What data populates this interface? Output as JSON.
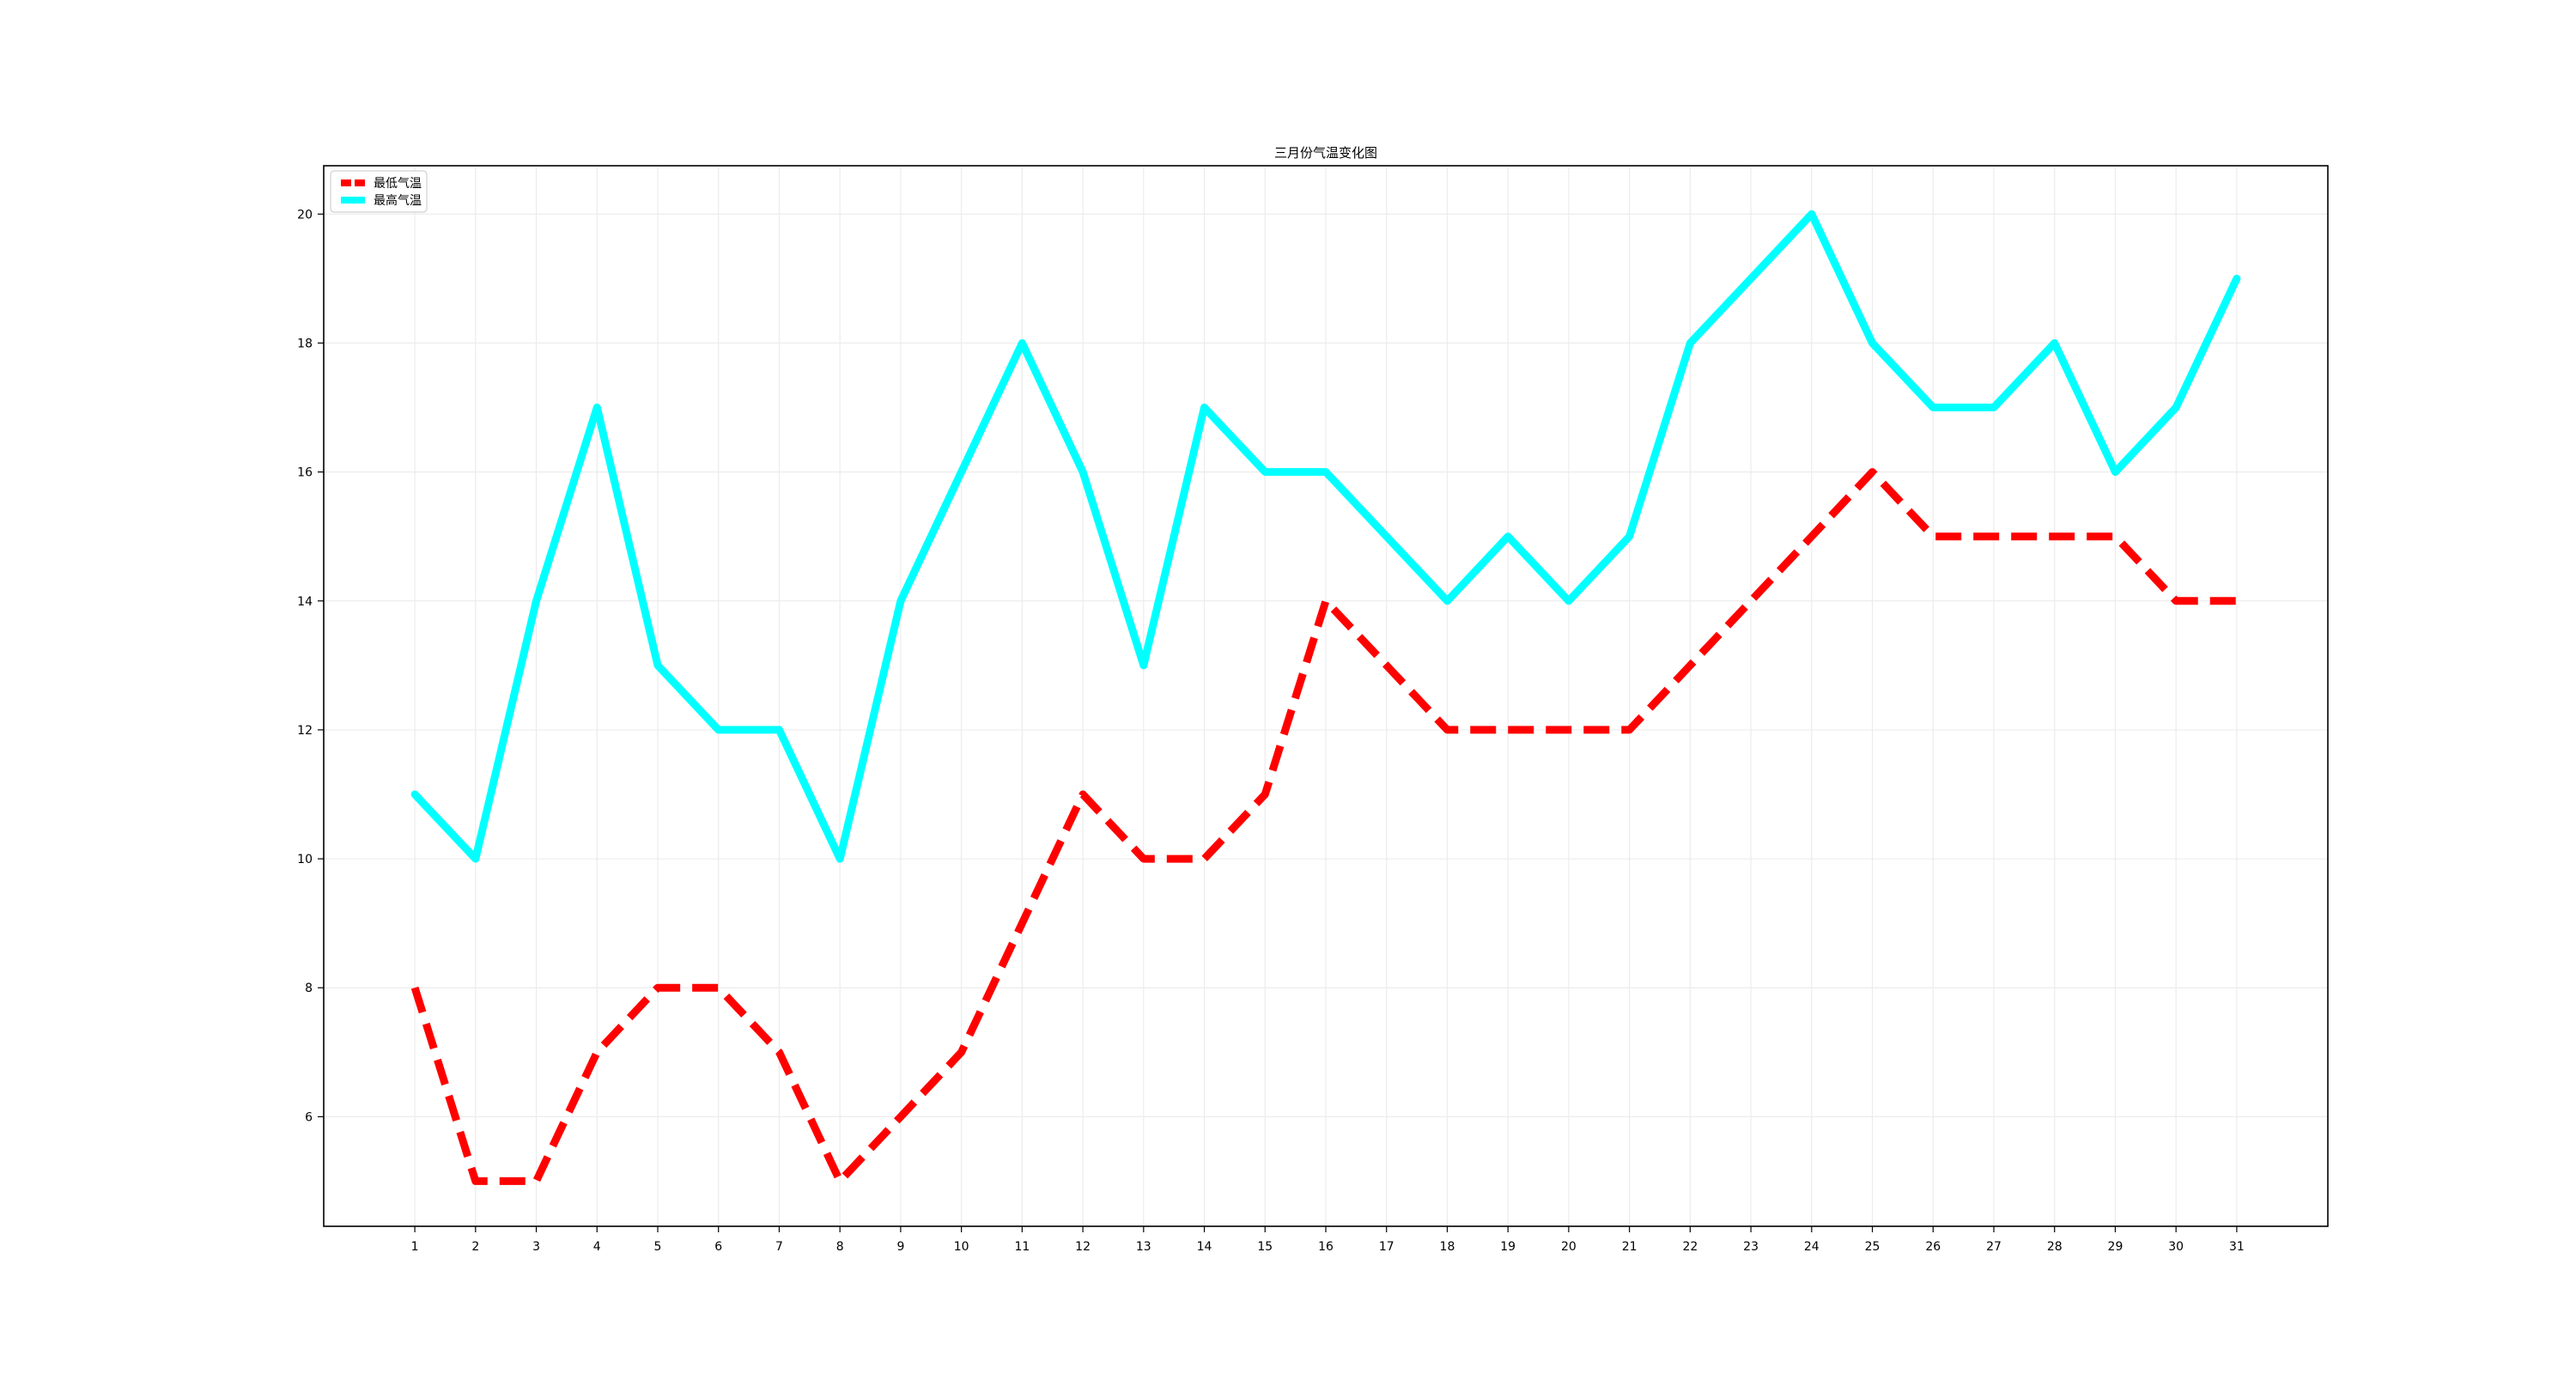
{
  "chart_data": {
    "type": "line",
    "title": "三月份气温变化图",
    "xlabel": "",
    "ylabel": "",
    "categories": [
      "1",
      "2",
      "3",
      "4",
      "5",
      "6",
      "7",
      "8",
      "9",
      "10",
      "11",
      "12",
      "13",
      "14",
      "15",
      "16",
      "17",
      "18",
      "19",
      "20",
      "21",
      "22",
      "23",
      "24",
      "25",
      "26",
      "27",
      "28",
      "29",
      "30",
      "31"
    ],
    "x": [
      1,
      2,
      3,
      4,
      5,
      6,
      7,
      8,
      9,
      10,
      11,
      12,
      13,
      14,
      15,
      16,
      17,
      18,
      19,
      20,
      21,
      22,
      23,
      24,
      25,
      26,
      27,
      28,
      29,
      30,
      31
    ],
    "xlim": [
      -0.5,
      32.5
    ],
    "ylim": [
      4.3,
      20.75
    ],
    "yticks": [
      6,
      8,
      10,
      12,
      14,
      16,
      18,
      20
    ],
    "grid": true,
    "legend_position": "top-left",
    "series": [
      {
        "name": "最低气温",
        "color": "#ff0000",
        "style": "dashed",
        "values": [
          8,
          5,
          5,
          7,
          8,
          8,
          7,
          5,
          6,
          7,
          9,
          11,
          10,
          10,
          11,
          14,
          13,
          12,
          12,
          12,
          12,
          13,
          14,
          15,
          16,
          15,
          15,
          15,
          15,
          14,
          14
        ]
      },
      {
        "name": "最高气温",
        "color": "#00ffff",
        "style": "solid",
        "values": [
          11,
          10,
          14,
          17,
          13,
          12,
          12,
          10,
          14,
          16,
          18,
          16,
          13,
          17,
          16,
          16,
          15,
          14,
          15,
          14,
          15,
          18,
          19,
          20,
          18,
          17,
          17,
          18,
          16,
          17,
          19
        ]
      }
    ]
  }
}
